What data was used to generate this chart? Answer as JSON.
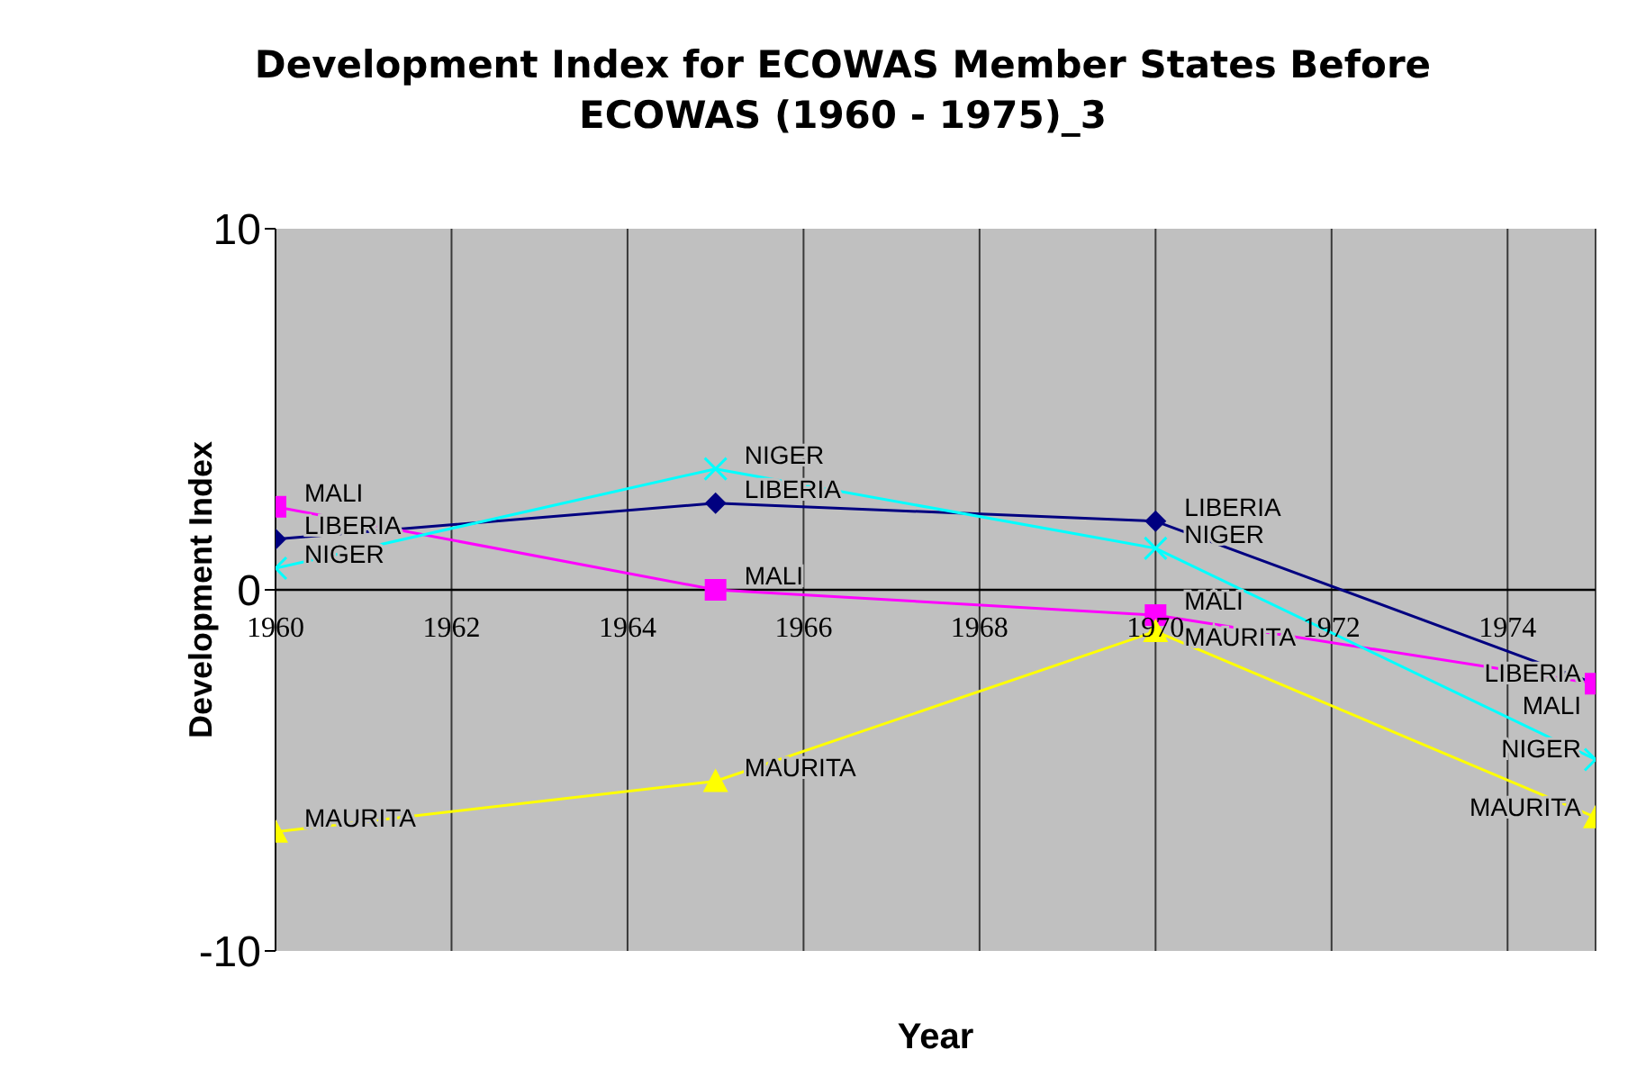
{
  "chart_data": {
    "type": "line",
    "title": "Development Index for ECOWAS Member States Before ECOWAS (1960 - 1975)_3",
    "xlabel": "Year",
    "ylabel": "Development Index",
    "x": [
      1960,
      1965,
      1970,
      1975
    ],
    "xlim": [
      1960,
      1975
    ],
    "xticks": [
      1960,
      1962,
      1964,
      1966,
      1968,
      1970,
      1972,
      1974
    ],
    "ylim": [
      -10,
      10
    ],
    "yticks": [
      -10,
      0,
      10
    ],
    "grid": "x",
    "legend": false,
    "series": [
      {
        "name": "LIBERIA",
        "color": "#000080",
        "marker": "diamond",
        "values": [
          1.4,
          2.4,
          1.9,
          -2.6
        ]
      },
      {
        "name": "MALI",
        "color": "#ff00ff",
        "marker": "square",
        "values": [
          2.3,
          0,
          -0.7,
          -2.6
        ]
      },
      {
        "name": "NIGER",
        "color": "#00ffff",
        "marker": "cross",
        "values": [
          0.6,
          3.35,
          1.15,
          -4.7
        ]
      },
      {
        "name": "MAURITA",
        "color": "#ffff00",
        "marker": "triangle",
        "values": [
          -6.7,
          -5.3,
          -1.15,
          -6.3
        ]
      }
    ]
  }
}
